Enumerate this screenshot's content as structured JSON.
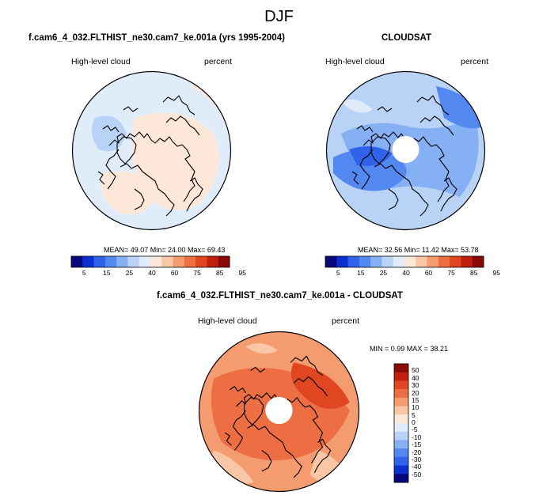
{
  "figure": {
    "season": "DJF",
    "panel1": {
      "title": "f.cam6_4_032.FLTHIST_ne30.cam7_ke.001a (yrs 1995-2004)",
      "left_label": "High-level cloud",
      "right_label": "percent",
      "stats": "MEAN=  49.07  Min=  24.00  Max=  69.43"
    },
    "panel2": {
      "title": "CLOUDSAT",
      "left_label": "High-level cloud",
      "right_label": "percent",
      "stats": "MEAN=  32.56  Min=  11.42  Max=  53.78"
    },
    "panel3": {
      "title": "f.cam6_4_032.FLTHIST_ne30.cam7_ke.001a - CLOUDSAT",
      "left_label": "High-level cloud",
      "right_label": "percent",
      "stats": "MIN =   0.99 MAX =  38.21"
    }
  },
  "colors": {
    "abs_scale": [
      "#08087a",
      "#0c2fd0",
      "#2e63ea",
      "#5388f0",
      "#86b0f4",
      "#b9d3f7",
      "#e0ecfa",
      "#fde7d8",
      "#f9c6a6",
      "#f59b70",
      "#ee6e43",
      "#e04622",
      "#c01f0f",
      "#8a0a06"
    ],
    "diff_scale": [
      "#08087a",
      "#0c2fd0",
      "#2e63ea",
      "#5388f0",
      "#86b0f4",
      "#b9d3f7",
      "#e0ecfa",
      "#fde7d8",
      "#f9c6a6",
      "#f59b70",
      "#ee6e43",
      "#e04622",
      "#c01f0f",
      "#8a0a06"
    ]
  },
  "chart_data": [
    {
      "type": "heatmap",
      "title": "f.cam6_4_032.FLTHIST_ne30.cam7_ke.001a (yrs 1995-2004)",
      "projection": "north-polar-stereographic",
      "variable": "High-level cloud",
      "units": "percent",
      "colorbar_ticks": [
        "5",
        "15",
        "25",
        "40",
        "60",
        "75",
        "85",
        "95"
      ],
      "colorbar_levels": [
        5,
        10,
        15,
        20,
        25,
        30,
        40,
        50,
        60,
        70,
        75,
        80,
        85,
        90,
        95
      ],
      "mean": 49.07,
      "min": 24.0,
      "max": 69.43
    },
    {
      "type": "heatmap",
      "title": "CLOUDSAT",
      "projection": "north-polar-stereographic",
      "variable": "High-level cloud",
      "units": "percent",
      "colorbar_ticks": [
        "5",
        "15",
        "25",
        "40",
        "60",
        "75",
        "85",
        "95"
      ],
      "colorbar_levels": [
        5,
        10,
        15,
        20,
        25,
        30,
        40,
        50,
        60,
        70,
        75,
        80,
        85,
        90,
        95
      ],
      "mean": 32.56,
      "min": 11.42,
      "max": 53.78
    },
    {
      "type": "heatmap",
      "title": "f.cam6_4_032.FLTHIST_ne30.cam7_ke.001a - CLOUDSAT",
      "projection": "north-polar-stereographic",
      "variable": "High-level cloud",
      "units": "percent",
      "colorbar_ticks": [
        "50",
        "40",
        "30",
        "20",
        "15",
        "10",
        "5",
        "0",
        "-5",
        "-10",
        "-15",
        "-20",
        "-30",
        "-40",
        "-50"
      ],
      "min": 0.99,
      "max": 38.21
    }
  ]
}
